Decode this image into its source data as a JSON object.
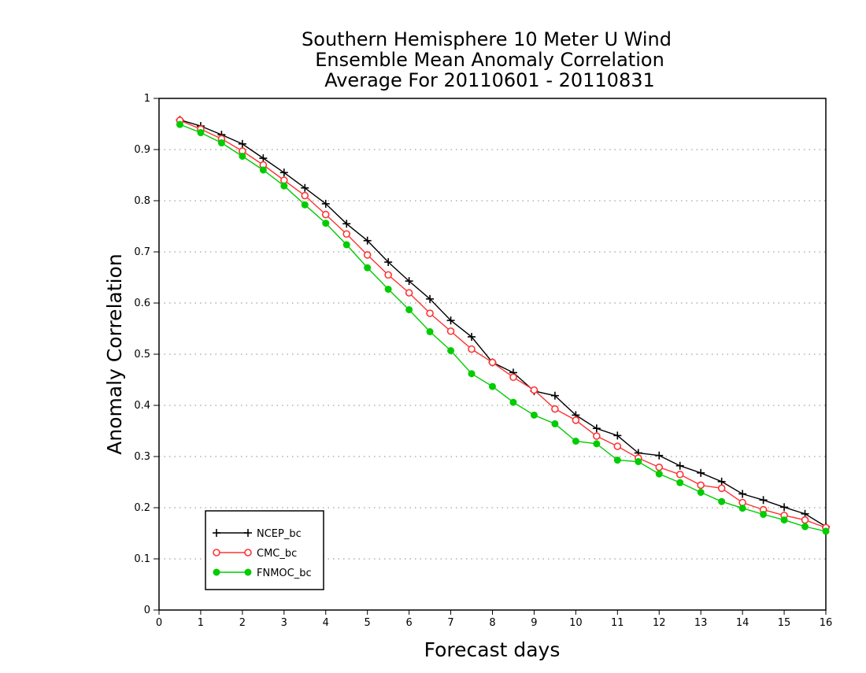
{
  "chart_data": {
    "type": "line",
    "title": [
      "Southern Hemisphere 10 Meter U Wind",
      "Ensemble Mean Anomaly Correlation",
      "Average For 20110601 - 20110831"
    ],
    "xlabel": "Forecast days",
    "ylabel": "Anomaly Correlation",
    "xlim": [
      0,
      16
    ],
    "ylim": [
      0,
      1
    ],
    "xticks": [
      0,
      1,
      2,
      3,
      4,
      5,
      6,
      7,
      8,
      9,
      10,
      11,
      12,
      13,
      14,
      15,
      16
    ],
    "yticks": [
      0,
      0.1,
      0.2,
      0.3,
      0.4,
      0.5,
      0.6,
      0.7,
      0.8,
      0.9,
      1
    ],
    "ytick_labels": [
      "0",
      "0.1",
      "0.2",
      "0.3",
      "0.4",
      "0.5",
      "0.6",
      "0.7",
      "0.8",
      "0.9",
      "1"
    ],
    "grid": "horizontal-dotted",
    "legend_position": "bottom-left",
    "x": [
      0.5,
      1,
      1.5,
      2,
      2.5,
      3,
      3.5,
      4,
      4.5,
      5,
      5.5,
      6,
      6.5,
      7,
      7.5,
      8,
      8.5,
      9,
      9.5,
      10,
      10.5,
      11,
      11.5,
      12,
      12.5,
      13,
      13.5,
      14,
      14.5,
      15,
      15.5,
      16
    ],
    "series": [
      {
        "name": "NCEP_bc",
        "color": "#000000",
        "marker": "plus",
        "values": [
          0.958,
          0.946,
          0.929,
          0.911,
          0.883,
          0.855,
          0.825,
          0.794,
          0.755,
          0.722,
          0.68,
          0.643,
          0.608,
          0.566,
          0.534,
          0.484,
          0.464,
          0.428,
          0.419,
          0.381,
          0.355,
          0.341,
          0.307,
          0.302,
          0.282,
          0.268,
          0.251,
          0.227,
          0.215,
          0.201,
          0.188,
          0.163
        ]
      },
      {
        "name": "CMC_bc",
        "color": "#ff3333",
        "marker": "open-circle",
        "values": [
          0.957,
          0.94,
          0.921,
          0.897,
          0.87,
          0.84,
          0.81,
          0.773,
          0.735,
          0.694,
          0.655,
          0.62,
          0.58,
          0.545,
          0.51,
          0.484,
          0.455,
          0.43,
          0.393,
          0.371,
          0.34,
          0.32,
          0.297,
          0.279,
          0.265,
          0.244,
          0.238,
          0.21,
          0.196,
          0.185,
          0.176,
          0.161
        ]
      },
      {
        "name": "FNMOC_bc",
        "color": "#00cc00",
        "marker": "filled-circle",
        "values": [
          0.949,
          0.933,
          0.913,
          0.887,
          0.86,
          0.829,
          0.792,
          0.756,
          0.714,
          0.669,
          0.627,
          0.587,
          0.544,
          0.507,
          0.462,
          0.437,
          0.406,
          0.381,
          0.364,
          0.33,
          0.325,
          0.293,
          0.29,
          0.266,
          0.249,
          0.23,
          0.212,
          0.199,
          0.187,
          0.176,
          0.163,
          0.154
        ]
      }
    ]
  }
}
